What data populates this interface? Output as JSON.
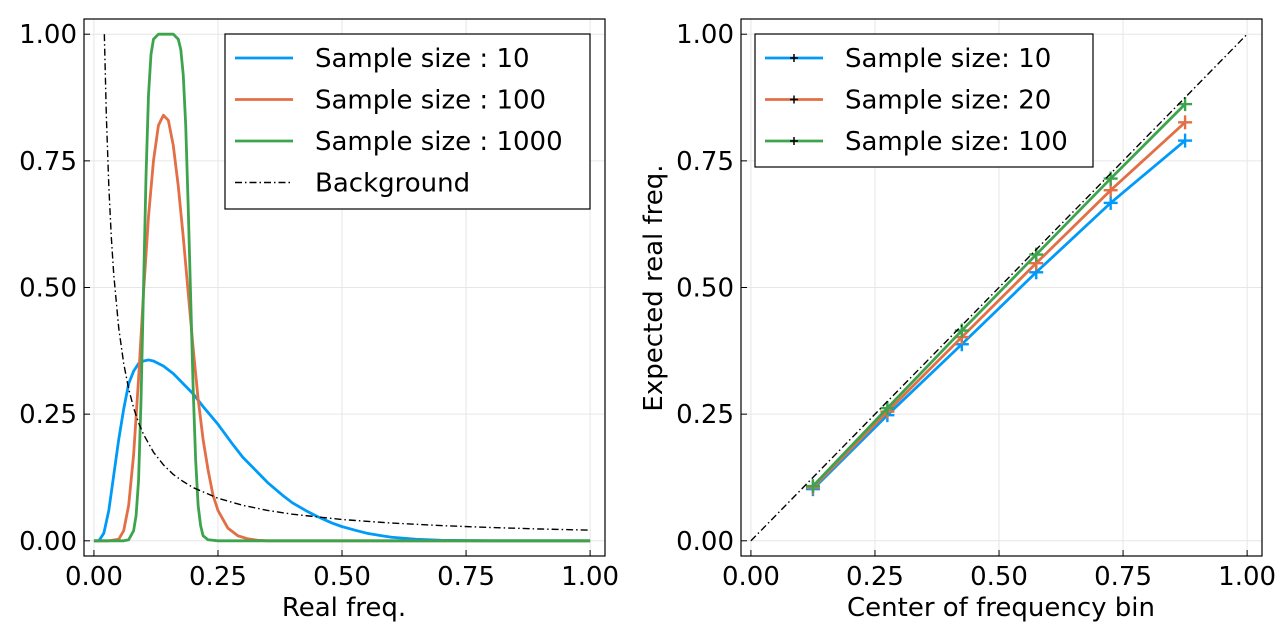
{
  "chart_data": [
    {
      "type": "line",
      "xlabel": "Real freq.",
      "ylabel": "",
      "xlim": [
        -0.02,
        1.03
      ],
      "ylim": [
        -0.03,
        1.03
      ],
      "xticks": [
        "0.00",
        "0.25",
        "0.50",
        "0.75",
        "1.00"
      ],
      "yticks": [
        "0.00",
        "0.25",
        "0.50",
        "0.75",
        "1.00"
      ],
      "grid": true,
      "legend_position": "top-right",
      "series": [
        {
          "name": "Sample size : 10",
          "color": "#009af9",
          "style": "solid",
          "x": [
            0.0,
            0.01,
            0.02,
            0.03,
            0.04,
            0.05,
            0.06,
            0.07,
            0.08,
            0.09,
            0.1,
            0.11,
            0.12,
            0.14,
            0.16,
            0.18,
            0.2,
            0.22,
            0.25,
            0.28,
            0.3,
            0.33,
            0.35,
            0.38,
            0.4,
            0.43,
            0.45,
            0.48,
            0.5,
            0.53,
            0.55,
            0.58,
            0.6,
            0.65,
            0.7,
            0.8,
            0.9,
            1.0
          ],
          "y": [
            0.0,
            0.0,
            0.015,
            0.06,
            0.13,
            0.2,
            0.26,
            0.31,
            0.335,
            0.35,
            0.355,
            0.357,
            0.355,
            0.345,
            0.33,
            0.31,
            0.29,
            0.265,
            0.23,
            0.19,
            0.165,
            0.135,
            0.115,
            0.09,
            0.075,
            0.058,
            0.048,
            0.035,
            0.028,
            0.02,
            0.015,
            0.01,
            0.007,
            0.003,
            0.001,
            0.0,
            0.0,
            0.0
          ]
        },
        {
          "name": "Sample size : 100",
          "color": "#e26f46",
          "style": "solid",
          "x": [
            0.0,
            0.03,
            0.05,
            0.06,
            0.07,
            0.08,
            0.09,
            0.1,
            0.11,
            0.12,
            0.13,
            0.14,
            0.15,
            0.16,
            0.17,
            0.18,
            0.19,
            0.2,
            0.21,
            0.22,
            0.23,
            0.24,
            0.25,
            0.27,
            0.29,
            0.31,
            0.33,
            0.35,
            0.4,
            0.5,
            1.0
          ],
          "y": [
            0.0,
            0.0,
            0.003,
            0.02,
            0.07,
            0.17,
            0.32,
            0.49,
            0.64,
            0.75,
            0.82,
            0.84,
            0.83,
            0.78,
            0.7,
            0.6,
            0.49,
            0.38,
            0.28,
            0.2,
            0.14,
            0.09,
            0.06,
            0.025,
            0.01,
            0.004,
            0.001,
            0.0,
            0.0,
            0.0,
            0.0
          ]
        },
        {
          "name": "Sample size : 1000",
          "color": "#3da44d",
          "style": "solid",
          "x": [
            0.0,
            0.06,
            0.07,
            0.08,
            0.085,
            0.09,
            0.095,
            0.1,
            0.105,
            0.11,
            0.115,
            0.12,
            0.13,
            0.14,
            0.15,
            0.16,
            0.17,
            0.175,
            0.18,
            0.185,
            0.19,
            0.195,
            0.2,
            0.205,
            0.21,
            0.215,
            0.22,
            0.23,
            0.25,
            1.0
          ],
          "y": [
            0.0,
            0.0,
            0.002,
            0.02,
            0.05,
            0.12,
            0.28,
            0.5,
            0.72,
            0.88,
            0.96,
            0.99,
            1.0,
            1.0,
            1.0,
            1.0,
            0.99,
            0.97,
            0.92,
            0.82,
            0.66,
            0.48,
            0.3,
            0.16,
            0.07,
            0.03,
            0.01,
            0.002,
            0.0,
            0.0
          ]
        },
        {
          "name": "Background",
          "color": "#000000",
          "style": "dashdot",
          "x": [
            0.021,
            0.025,
            0.03,
            0.035,
            0.04,
            0.05,
            0.06,
            0.07,
            0.08,
            0.09,
            0.1,
            0.12,
            0.14,
            0.16,
            0.18,
            0.2,
            0.25,
            0.3,
            0.35,
            0.4,
            0.5,
            0.6,
            0.7,
            0.8,
            0.9,
            1.0
          ],
          "y": [
            1.0,
            0.84,
            0.7,
            0.6,
            0.525,
            0.42,
            0.35,
            0.3,
            0.2625,
            0.233,
            0.21,
            0.175,
            0.15,
            0.131,
            0.117,
            0.105,
            0.084,
            0.07,
            0.06,
            0.0525,
            0.042,
            0.035,
            0.03,
            0.02625,
            0.0233,
            0.021
          ]
        }
      ]
    },
    {
      "type": "line",
      "xlabel": "Center of frequency bin",
      "ylabel": "Expected real freq.",
      "xlim": [
        -0.02,
        1.03
      ],
      "ylim": [
        -0.03,
        1.03
      ],
      "xticks": [
        "0.00",
        "0.25",
        "0.50",
        "0.75",
        "1.00"
      ],
      "yticks": [
        "0.00",
        "0.25",
        "0.50",
        "0.75",
        "1.00"
      ],
      "grid": true,
      "legend_position": "top-left",
      "series": [
        {
          "name": "Sample size: 10",
          "color": "#009af9",
          "style": "solid",
          "marker": "+",
          "x": [
            0.125,
            0.275,
            0.425,
            0.575,
            0.725,
            0.875
          ],
          "y": [
            0.102,
            0.248,
            0.388,
            0.53,
            0.667,
            0.79
          ]
        },
        {
          "name": "Sample size: 20",
          "color": "#e26f46",
          "style": "solid",
          "marker": "+",
          "x": [
            0.125,
            0.275,
            0.425,
            0.575,
            0.725,
            0.875
          ],
          "y": [
            0.105,
            0.255,
            0.402,
            0.548,
            0.692,
            0.826
          ]
        },
        {
          "name": "Sample size: 100",
          "color": "#3da44d",
          "style": "solid",
          "marker": "+",
          "x": [
            0.125,
            0.275,
            0.425,
            0.575,
            0.725,
            0.875
          ],
          "y": [
            0.108,
            0.262,
            0.415,
            0.565,
            0.715,
            0.862
          ]
        },
        {
          "color": "#000000",
          "style": "dashdot",
          "x": [
            0.0,
            1.0
          ],
          "y": [
            0.0,
            1.0
          ]
        }
      ]
    }
  ]
}
